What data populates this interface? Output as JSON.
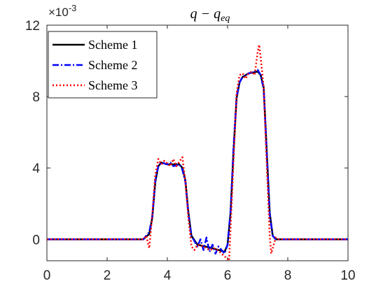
{
  "chart_data": {
    "type": "line",
    "title": "q − q",
    "title_subscript": "eq",
    "exponent_label": "×10",
    "exponent_power": "-3",
    "xlim": [
      0,
      10
    ],
    "ylim": [
      -0.0012,
      0.012
    ],
    "x_ticks": [
      0,
      2,
      4,
      6,
      8,
      10
    ],
    "x_tick_labels": [
      "0",
      "2",
      "4",
      "6",
      "8",
      "10"
    ],
    "y_ticks": [
      0,
      0.004,
      0.008,
      0.012
    ],
    "y_tick_labels": [
      "0",
      "4",
      "8",
      "12"
    ],
    "grid": false,
    "legend_position": "top-left",
    "series": [
      {
        "name": "Scheme 1",
        "color": "#000000",
        "style": "solid",
        "x": [
          0,
          3.2,
          3.4,
          3.5,
          3.6,
          3.7,
          3.8,
          4.0,
          4.2,
          4.4,
          4.5,
          4.6,
          4.7,
          4.8,
          5.0,
          5.5,
          5.9,
          6.0,
          6.1,
          6.2,
          6.3,
          6.4,
          6.5,
          6.7,
          7.0,
          7.1,
          7.2,
          7.3,
          7.4,
          7.5,
          7.6,
          8,
          10
        ],
        "y": [
          0,
          0,
          0.0003,
          0.0012,
          0.0032,
          0.0041,
          0.0043,
          0.0042,
          0.0042,
          0.0042,
          0.004,
          0.0033,
          0.0015,
          0.0002,
          -0.0003,
          -0.0005,
          -0.0007,
          -0.0003,
          0.0015,
          0.005,
          0.0079,
          0.0088,
          0.0091,
          0.0093,
          0.0094,
          0.0092,
          0.0085,
          0.005,
          0.0015,
          0.0002,
          0,
          0,
          0
        ]
      },
      {
        "name": "Scheme 2",
        "color": "#0000ff",
        "style": "dashdot",
        "x": [
          0,
          3.2,
          3.4,
          3.5,
          3.6,
          3.7,
          3.8,
          4.0,
          4.1,
          4.2,
          4.4,
          4.5,
          4.6,
          4.7,
          4.8,
          5.0,
          5.1,
          5.2,
          5.3,
          5.4,
          5.5,
          5.6,
          5.7,
          5.9,
          6.0,
          6.1,
          6.2,
          6.3,
          6.4,
          6.5,
          6.7,
          6.9,
          7.0,
          7.1,
          7.2,
          7.3,
          7.4,
          7.5,
          7.6,
          8,
          10
        ],
        "y": [
          0,
          0,
          0.0004,
          0.0013,
          0.0033,
          0.0041,
          0.0043,
          0.0042,
          0.0043,
          0.0041,
          0.0042,
          0.0039,
          0.0032,
          0.0014,
          0.0002,
          -0.0004,
          0.0,
          -0.0006,
          0.0001,
          -0.0007,
          -0.0003,
          -0.0008,
          -0.0004,
          -0.0008,
          -0.0003,
          0.0016,
          0.0052,
          0.008,
          0.0088,
          0.0091,
          0.0093,
          0.0094,
          0.0095,
          0.0092,
          0.0084,
          0.0049,
          0.0014,
          0.0002,
          0,
          0,
          0
        ]
      },
      {
        "name": "Scheme 3",
        "color": "#ff0000",
        "style": "dotted",
        "x": [
          0,
          3.2,
          3.3,
          3.4,
          3.5,
          3.6,
          3.7,
          3.8,
          3.9,
          4.1,
          4.2,
          4.3,
          4.5,
          4.6,
          4.7,
          4.8,
          4.9,
          5.0,
          5.2,
          5.4,
          5.6,
          5.8,
          6.0,
          6.05,
          6.1,
          6.2,
          6.3,
          6.4,
          6.5,
          6.6,
          6.7,
          6.8,
          6.9,
          7.0,
          7.05,
          7.1,
          7.2,
          7.3,
          7.4,
          7.45,
          7.5,
          7.6,
          7.7,
          8,
          10
        ],
        "y": [
          0,
          0,
          0.0002,
          -0.0005,
          0.0014,
          0.0036,
          0.0045,
          0.0042,
          0.0044,
          0.0041,
          0.0045,
          0.0041,
          0.0046,
          0.0032,
          0.0012,
          -0.0004,
          -0.0006,
          -0.0003,
          -0.0004,
          -0.0006,
          -0.0005,
          -0.0008,
          -0.0011,
          -0.0012,
          0.0006,
          0.0045,
          0.0082,
          0.0092,
          0.0093,
          0.009,
          0.0093,
          0.0094,
          0.0092,
          0.0105,
          0.0109,
          0.0102,
          0.0085,
          0.0043,
          0.0002,
          -0.0008,
          -0.0005,
          0.0001,
          0,
          0,
          0
        ]
      }
    ]
  }
}
